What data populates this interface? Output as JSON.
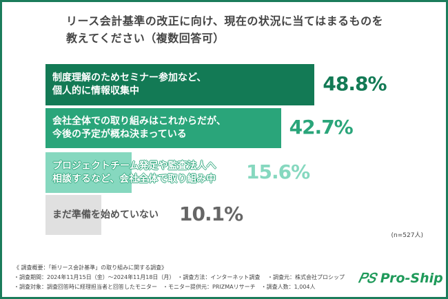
{
  "chart_data": {
    "type": "bar",
    "orientation": "horizontal",
    "title": "リース会計基準の改正に向け、現在の状況に当てはまるものを教えてください（複数回答可）",
    "title_lines": [
      "リース会計基準の改正に向け、現在の状況に当てはまるものを",
      "教えてください（複数回答可）"
    ],
    "categories": [
      [
        "制度理解のためセミナー参加など、",
        "個人的に情報収集中"
      ],
      [
        "会社全体での取り組みはこれからだが、",
        "今後の予定が概ね決まっている"
      ],
      [
        "プロジェクトチーム発足や監査法人へ",
        "相談するなど、会社全体で取り組み中"
      ],
      [
        "まだ準備を始めていない"
      ]
    ],
    "values": [
      48.8,
      42.7,
      15.6,
      10.1
    ],
    "value_labels": [
      "48.8%",
      "42.7%",
      "15.6%",
      "10.1%"
    ],
    "colors": [
      "#137a55",
      "#2aa57a",
      "#86d8bf",
      "#e0e0e0"
    ],
    "pct_colors": [
      "#137a55",
      "#2aa57a",
      "#86d8bf",
      "#666666"
    ],
    "note": "(n=527人)"
  },
  "footer": [
    "《 調査概要：「新リース会計基準」の取り組みに関する調査》",
    "・調査期間：2024年11月15日（金）～2024年11月18日（月）　・調査方法：インターネット調査　 ・調査元：株式会社プロシップ",
    "・調査対象：調査回答時に経理担当者と回答したモニター　・モニター提供元：PRIZMAリサーチ　・調査人数：1,004人"
  ],
  "logo": "PS Pro-Ship"
}
